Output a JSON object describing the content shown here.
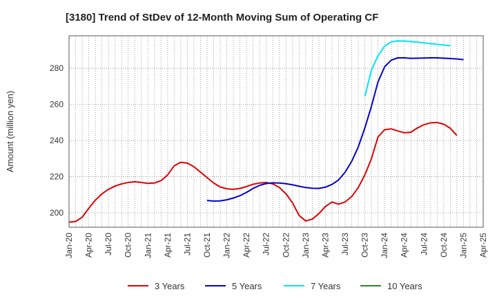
{
  "chart_data": {
    "type": "line",
    "title": "[3180]  Trend of StDev of 12-Month Moving Sum of Operating CF",
    "ylabel": "Amount (million yen)",
    "xlabel": "",
    "ylim": [
      192,
      298
    ],
    "yticks": [
      200,
      220,
      240,
      260,
      280
    ],
    "x_start": "Jan-20",
    "x_end": "Apr-25",
    "x_tick_labels": [
      "Jan-20",
      "Apr-20",
      "Jul-20",
      "Oct-20",
      "Jan-21",
      "Apr-21",
      "Jul-21",
      "Oct-21",
      "Jan-22",
      "Apr-22",
      "Jul-22",
      "Oct-22",
      "Jan-23",
      "Apr-23",
      "Jul-23",
      "Oct-23",
      "Jan-24",
      "Apr-24",
      "Jul-24",
      "Oct-24",
      "Jan-25",
      "Apr-25"
    ],
    "grid": true,
    "legend_position": "bottom",
    "series": [
      {
        "name": "3 Years",
        "color": "#dd0000",
        "start": "Jan-20",
        "values": [
          194.8,
          195.2,
          197.5,
          202.5,
          207.0,
          210.5,
          213.0,
          214.8,
          216.0,
          216.8,
          217.2,
          216.8,
          216.3,
          216.5,
          217.8,
          221.0,
          226.0,
          228.0,
          227.5,
          225.5,
          222.5,
          219.5,
          216.5,
          214.3,
          213.3,
          213.0,
          213.5,
          214.5,
          215.8,
          216.5,
          216.8,
          216.0,
          214.0,
          210.5,
          205.5,
          198.5,
          195.5,
          196.5,
          199.5,
          203.5,
          206.0,
          204.8,
          206.0,
          209.0,
          214.0,
          221.0,
          230.0,
          242.0,
          246.0,
          246.5,
          245.3,
          244.3,
          244.6,
          247.0,
          248.8,
          249.8,
          250.0,
          249.0,
          246.8,
          242.8
        ]
      },
      {
        "name": "5 Years",
        "color": "#0000cc",
        "start": "Oct-21",
        "values": [
          206.8,
          206.5,
          206.6,
          207.2,
          208.2,
          209.5,
          211.3,
          213.5,
          215.2,
          216.2,
          216.6,
          216.5,
          216.1,
          215.5,
          214.7,
          214.0,
          213.6,
          213.5,
          214.2,
          215.7,
          218.2,
          222.5,
          228.5,
          236.5,
          247.0,
          259.0,
          272.5,
          280.8,
          284.5,
          285.8,
          285.8,
          285.5,
          285.6,
          285.7,
          285.8,
          285.8,
          285.6,
          285.4,
          285.2,
          284.8
        ]
      },
      {
        "name": "7 Years",
        "color": "#00e5ee",
        "start": "Oct-23",
        "values": [
          264.5,
          279.0,
          287.0,
          292.2,
          294.6,
          295.2,
          295.1,
          294.8,
          294.5,
          294.1,
          293.7,
          293.3,
          292.9,
          292.5
        ]
      },
      {
        "name": "10 Years",
        "color": "#228b22",
        "start": "Jan-20",
        "values": []
      }
    ]
  }
}
